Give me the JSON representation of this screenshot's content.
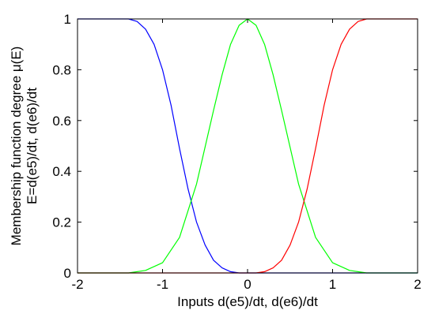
{
  "chart_data": {
    "type": "line",
    "xlabel": "Inputs d(e5)/dt, d(e6)/dt",
    "ylabel_lines": [
      "Membership function degree μ(E)",
      "E=d(e5)/dt, d(e6)/dt"
    ],
    "xlim": [
      -2,
      2
    ],
    "ylim": [
      0,
      1
    ],
    "x_ticks": [
      -2,
      -1,
      0,
      1,
      2
    ],
    "y_ticks": [
      0,
      0.2,
      0.4,
      0.6,
      0.8,
      1
    ],
    "x_tick_labels": [
      "-2",
      "-1",
      "0",
      "1",
      "2"
    ],
    "y_tick_labels": [
      "0",
      "0.2",
      "0.4",
      "0.6",
      "0.8",
      "1"
    ],
    "grid": false,
    "series": [
      {
        "color": "#0000ff",
        "x": [
          -2,
          -1.4,
          -1.3,
          -1.2,
          -1.1,
          -1.0,
          -0.9,
          -0.8,
          -0.7,
          -0.6,
          -0.5,
          -0.4,
          -0.3,
          -0.2,
          -0.1,
          0,
          2
        ],
        "y": [
          1,
          1,
          0.99,
          0.96,
          0.9,
          0.8,
          0.66,
          0.49,
          0.33,
          0.2,
          0.11,
          0.05,
          0.02,
          0.005,
          0,
          0,
          0
        ]
      },
      {
        "color": "#00ff00",
        "x": [
          -2,
          -1.4,
          -1.2,
          -1.0,
          -0.8,
          -0.6,
          -0.4,
          -0.3,
          -0.2,
          -0.1,
          0,
          0.1,
          0.2,
          0.3,
          0.4,
          0.6,
          0.8,
          1.0,
          1.2,
          1.4,
          2
        ],
        "y": [
          0,
          0,
          0.01,
          0.04,
          0.14,
          0.35,
          0.64,
          0.78,
          0.9,
          0.975,
          1,
          0.975,
          0.9,
          0.78,
          0.64,
          0.35,
          0.14,
          0.04,
          0.01,
          0,
          0
        ]
      },
      {
        "color": "#ff0000",
        "x": [
          -2,
          0,
          0.1,
          0.2,
          0.3,
          0.4,
          0.5,
          0.6,
          0.7,
          0.8,
          0.9,
          1.0,
          1.1,
          1.2,
          1.3,
          1.4,
          2
        ],
        "y": [
          0,
          0,
          0,
          0.005,
          0.02,
          0.05,
          0.11,
          0.2,
          0.33,
          0.49,
          0.66,
          0.8,
          0.9,
          0.96,
          0.99,
          1,
          1
        ]
      }
    ]
  }
}
